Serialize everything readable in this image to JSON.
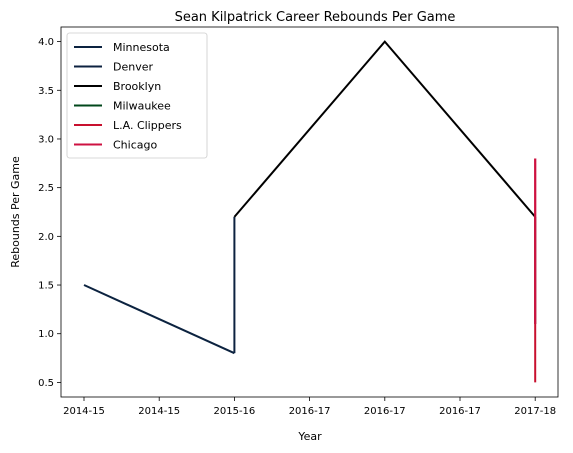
{
  "chart_data": {
    "type": "line",
    "title": "Sean Kilpatrick Career Rebounds Per Game",
    "xlabel": "Year",
    "ylabel": "Rebounds Per Game",
    "ylim": [
      0.35,
      4.15
    ],
    "y_ticks": [
      "0.5",
      "1.0",
      "1.5",
      "2.0",
      "2.5",
      "3.0",
      "3.5",
      "4.0"
    ],
    "x_ticks": [
      "2014-15",
      "2014-15",
      "2015-16",
      "2016-17",
      "2016-17",
      "2016-17",
      "2017-18"
    ],
    "legend_position": "top-left",
    "grid": false,
    "series": [
      {
        "name": "Minnesota",
        "color": "#0C2340",
        "points": [
          [
            "2014-15",
            1.5
          ],
          [
            "2015-16",
            0.8
          ]
        ]
      },
      {
        "name": "Denver",
        "color": "#0D2240",
        "points": [
          [
            "2015-16",
            0.8
          ],
          [
            "2015-16",
            2.2
          ]
        ]
      },
      {
        "name": "Brooklyn",
        "color": "#000000",
        "points": [
          [
            "2015-16",
            2.2
          ],
          [
            "2016-17",
            4.0
          ],
          [
            "2017-18",
            2.2
          ]
        ]
      },
      {
        "name": "Milwaukee",
        "color": "#00471B",
        "points": [
          [
            "2017-18",
            2.2
          ],
          [
            "2017-18",
            1.1
          ]
        ]
      },
      {
        "name": "L.A. Clippers",
        "color": "#C8102E",
        "points": [
          [
            "2017-18",
            2.8
          ],
          [
            "2017-18",
            0.5
          ]
        ]
      },
      {
        "name": "Chicago",
        "color": "#CE1141",
        "points": [
          [
            "2017-18",
            2.8
          ],
          [
            "2017-18",
            1.1
          ]
        ]
      }
    ]
  }
}
